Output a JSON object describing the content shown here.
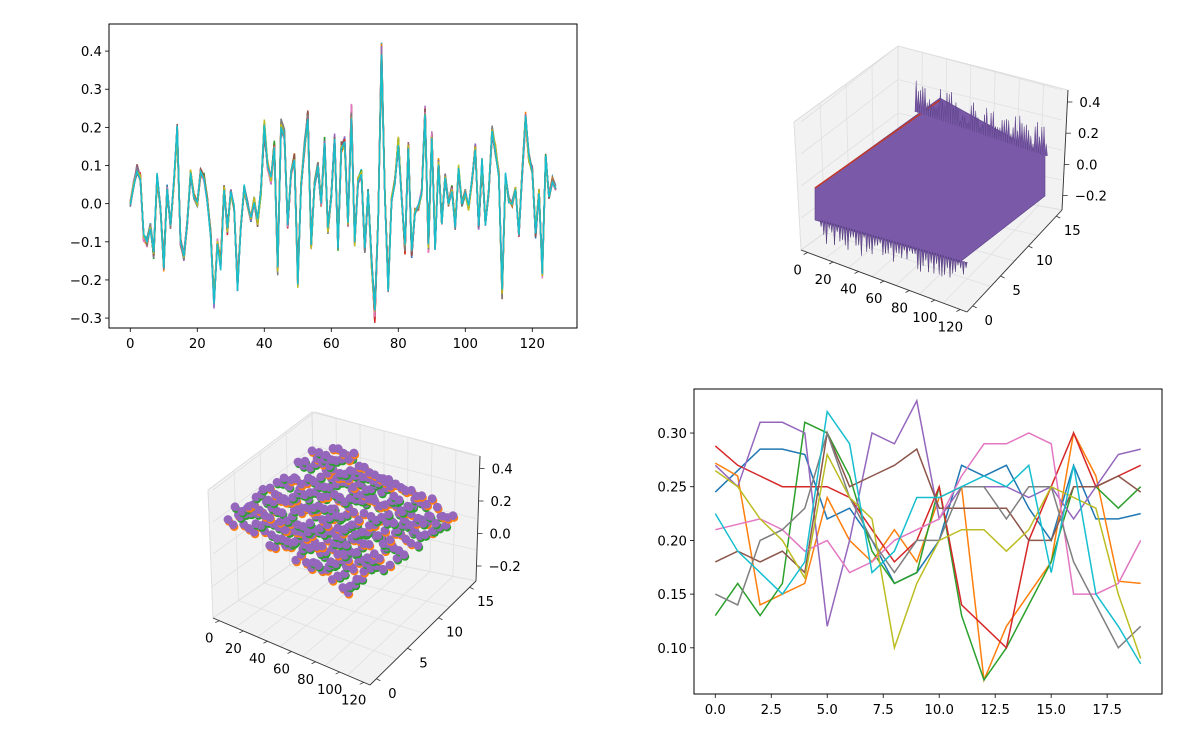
{
  "colors": {
    "tab10": [
      "#1f77b4",
      "#ff7f0e",
      "#2ca02c",
      "#d62728",
      "#9467bd",
      "#8c564b",
      "#e377c2",
      "#7f7f7f",
      "#bcbd22",
      "#17becf"
    ],
    "surface": "#7a5aa8",
    "scatter": "#9467bd",
    "scatter_under": "#ff7f0e",
    "pane": "#f2f2f2"
  },
  "chart_data": [
    {
      "type": "line",
      "title": "",
      "xlabel": "",
      "ylabel": "",
      "series_count": 20,
      "xlim": [
        -6.35,
        133.35
      ],
      "ylim": [
        -0.326,
        0.471
      ],
      "xticks": [
        0,
        20,
        40,
        60,
        80,
        100,
        120
      ],
      "xtick_labels": [
        "0",
        "20",
        "40",
        "60",
        "80",
        "100",
        "120"
      ],
      "yticks": [
        -0.3,
        -0.2,
        -0.1,
        0.0,
        0.1,
        0.2,
        0.3,
        0.4
      ],
      "ytick_labels": [
        "−0.3",
        "−0.2",
        "−0.1",
        "0.0",
        "0.1",
        "0.2",
        "0.3",
        "0.4"
      ],
      "x": [
        0,
        1,
        2,
        3,
        4,
        5,
        6,
        7,
        8,
        9,
        10,
        11,
        12,
        13,
        14,
        15,
        16,
        17,
        18,
        19,
        20,
        21,
        22,
        23,
        24,
        25,
        26,
        27,
        28,
        29,
        30,
        31,
        32,
        33,
        34,
        35,
        36,
        37,
        38,
        39,
        40,
        41,
        42,
        43,
        44,
        45,
        46,
        47,
        48,
        49,
        50,
        51,
        52,
        53,
        54,
        55,
        56,
        57,
        58,
        59,
        60,
        61,
        62,
        63,
        64,
        65,
        66,
        67,
        68,
        69,
        70,
        71,
        72,
        73,
        74,
        75,
        76,
        77,
        78,
        79,
        80,
        81,
        82,
        83,
        84,
        85,
        86,
        87,
        88,
        89,
        90,
        91,
        92,
        93,
        94,
        95,
        96,
        97,
        98,
        99,
        100,
        101,
        102,
        103,
        104,
        105,
        106,
        107,
        108,
        109,
        110,
        111,
        112,
        113,
        114,
        115,
        116,
        117,
        118,
        119,
        120,
        121,
        122,
        123,
        124,
        125,
        126,
        127
      ],
      "base_values": [
        0.0,
        0.05,
        0.09,
        0.07,
        -0.09,
        -0.1,
        -0.06,
        -0.13,
        0.07,
        -0.01,
        -0.16,
        0.04,
        -0.06,
        0.05,
        0.19,
        -0.1,
        -0.14,
        -0.05,
        0.08,
        0.02,
        0.0,
        0.08,
        0.07,
        0.01,
        -0.08,
        -0.26,
        -0.1,
        -0.16,
        0.04,
        -0.07,
        0.03,
        -0.01,
        -0.21,
        -0.06,
        0.04,
        0.0,
        -0.04,
        0.01,
        -0.05,
        0.03,
        0.2,
        0.1,
        0.06,
        0.15,
        -0.17,
        0.21,
        0.18,
        -0.06,
        0.08,
        0.12,
        -0.2,
        0.05,
        0.15,
        0.23,
        -0.11,
        0.05,
        0.1,
        0.0,
        0.16,
        -0.07,
        0.02,
        0.17,
        -0.11,
        0.15,
        0.16,
        -0.05,
        0.24,
        -0.1,
        0.06,
        0.08,
        -0.12,
        0.03,
        -0.15,
        -0.29,
        -0.04,
        0.4,
        0.02,
        -0.22,
        0.01,
        0.06,
        0.16,
        0.02,
        -0.12,
        0.15,
        -0.13,
        -0.02,
        -0.01,
        0.03,
        0.24,
        -0.12,
        0.18,
        -0.11,
        0.11,
        -0.05,
        0.07,
        0.0,
        0.04,
        -0.06,
        0.09,
        0.0,
        0.03,
        -0.01,
        0.06,
        0.15,
        -0.06,
        0.11,
        -0.05,
        0.03,
        0.19,
        0.14,
        0.08,
        -0.23,
        0.07,
        0.01,
        0.0,
        0.04,
        -0.08,
        0.08,
        0.22,
        0.12,
        0.09,
        -0.08,
        0.03,
        -0.18,
        0.12,
        0.02,
        0.06,
        0.04
      ]
    },
    {
      "type": "surface",
      "title": "",
      "xticks": [
        0,
        20,
        40,
        60,
        80,
        100,
        120
      ],
      "xtick_labels": [
        "0",
        "20",
        "40",
        "60",
        "80",
        "100",
        "120"
      ],
      "yticks": [
        0,
        5,
        10,
        15
      ],
      "ytick_labels": [
        "0",
        "5",
        "10",
        "15"
      ],
      "zticks": [
        0.4,
        0.2,
        0.0,
        -0.2
      ],
      "ztick_labels": [
        "0.4",
        "0.2",
        "0.0",
        "−0.2"
      ],
      "color": "#7a5aa8"
    },
    {
      "type": "scatter",
      "title": "",
      "xticks": [
        0,
        20,
        40,
        60,
        80,
        100,
        120
      ],
      "xtick_labels": [
        "0",
        "20",
        "40",
        "60",
        "80",
        "100",
        "120"
      ],
      "yticks": [
        0,
        5,
        10,
        15
      ],
      "ytick_labels": [
        "0",
        "5",
        "10",
        "15"
      ],
      "zticks": [
        0.4,
        0.2,
        0.0,
        -0.2
      ],
      "ztick_labels": [
        "0.4",
        "0.2",
        "0.0",
        "−0.2"
      ],
      "color": "#9467bd"
    },
    {
      "type": "line",
      "title": "",
      "xlabel": "",
      "ylabel": "",
      "xlim": [
        -0.95,
        19.95
      ],
      "ylim": [
        0.057,
        0.341
      ],
      "xticks": [
        0,
        2.5,
        5,
        7.5,
        10,
        12.5,
        15,
        17.5
      ],
      "xtick_labels": [
        "0.0",
        "2.5",
        "5.0",
        "7.5",
        "10.0",
        "12.5",
        "15.0",
        "17.5"
      ],
      "yticks": [
        0.1,
        0.15,
        0.2,
        0.25,
        0.3
      ],
      "ytick_labels": [
        "0.10",
        "0.15",
        "0.20",
        "0.25",
        "0.30"
      ],
      "x": [
        0,
        1,
        2,
        3,
        4,
        5,
        6,
        7,
        8,
        9,
        10,
        11,
        12,
        13,
        14,
        15,
        16,
        17,
        18,
        19
      ],
      "series": [
        {
          "values": [
            0.245,
            0.265,
            0.285,
            0.285,
            0.28,
            0.22,
            0.23,
            0.2,
            0.16,
            0.17,
            0.2,
            0.27,
            0.26,
            0.27,
            0.23,
            0.2,
            0.27,
            0.22,
            0.22,
            0.225
          ]
        },
        {
          "values": [
            0.272,
            0.26,
            0.14,
            0.15,
            0.16,
            0.24,
            0.2,
            0.18,
            0.21,
            0.18,
            0.24,
            0.25,
            0.07,
            0.12,
            0.15,
            0.18,
            0.3,
            0.26,
            0.162,
            0.16
          ]
        },
        {
          "values": [
            0.13,
            0.16,
            0.13,
            0.16,
            0.31,
            0.3,
            0.26,
            0.19,
            0.16,
            0.17,
            0.25,
            0.13,
            0.07,
            0.1,
            0.14,
            0.18,
            0.25,
            0.25,
            0.23,
            0.25
          ]
        },
        {
          "values": [
            0.288,
            0.27,
            0.26,
            0.25,
            0.25,
            0.25,
            0.24,
            0.21,
            0.18,
            0.2,
            0.25,
            0.14,
            0.12,
            0.1,
            0.2,
            0.25,
            0.3,
            0.25,
            0.26,
            0.27
          ]
        },
        {
          "values": [
            0.27,
            0.25,
            0.31,
            0.31,
            0.3,
            0.12,
            0.2,
            0.3,
            0.29,
            0.33,
            0.22,
            0.25,
            0.25,
            0.25,
            0.24,
            0.25,
            0.22,
            0.25,
            0.28,
            0.285
          ]
        },
        {
          "values": [
            0.18,
            0.19,
            0.18,
            0.19,
            0.17,
            0.3,
            0.25,
            0.26,
            0.27,
            0.285,
            0.23,
            0.23,
            0.23,
            0.23,
            0.2,
            0.2,
            0.25,
            0.25,
            0.26,
            0.245
          ]
        },
        {
          "values": [
            0.21,
            0.215,
            0.22,
            0.21,
            0.19,
            0.2,
            0.17,
            0.18,
            0.2,
            0.21,
            0.22,
            0.26,
            0.29,
            0.29,
            0.3,
            0.29,
            0.15,
            0.15,
            0.16,
            0.2
          ]
        },
        {
          "values": [
            0.15,
            0.14,
            0.2,
            0.21,
            0.23,
            0.3,
            0.24,
            0.2,
            0.17,
            0.2,
            0.2,
            0.25,
            0.25,
            0.22,
            0.25,
            0.25,
            0.18,
            0.14,
            0.1,
            0.12
          ]
        },
        {
          "values": [
            0.265,
            0.25,
            0.22,
            0.2,
            0.165,
            0.28,
            0.24,
            0.22,
            0.1,
            0.16,
            0.2,
            0.21,
            0.21,
            0.19,
            0.21,
            0.25,
            0.24,
            0.23,
            0.15,
            0.09
          ]
        },
        {
          "values": [
            0.225,
            0.19,
            0.17,
            0.15,
            0.18,
            0.32,
            0.29,
            0.17,
            0.19,
            0.24,
            0.24,
            0.25,
            0.26,
            0.25,
            0.27,
            0.17,
            0.27,
            0.15,
            0.12,
            0.085
          ]
        }
      ]
    }
  ]
}
